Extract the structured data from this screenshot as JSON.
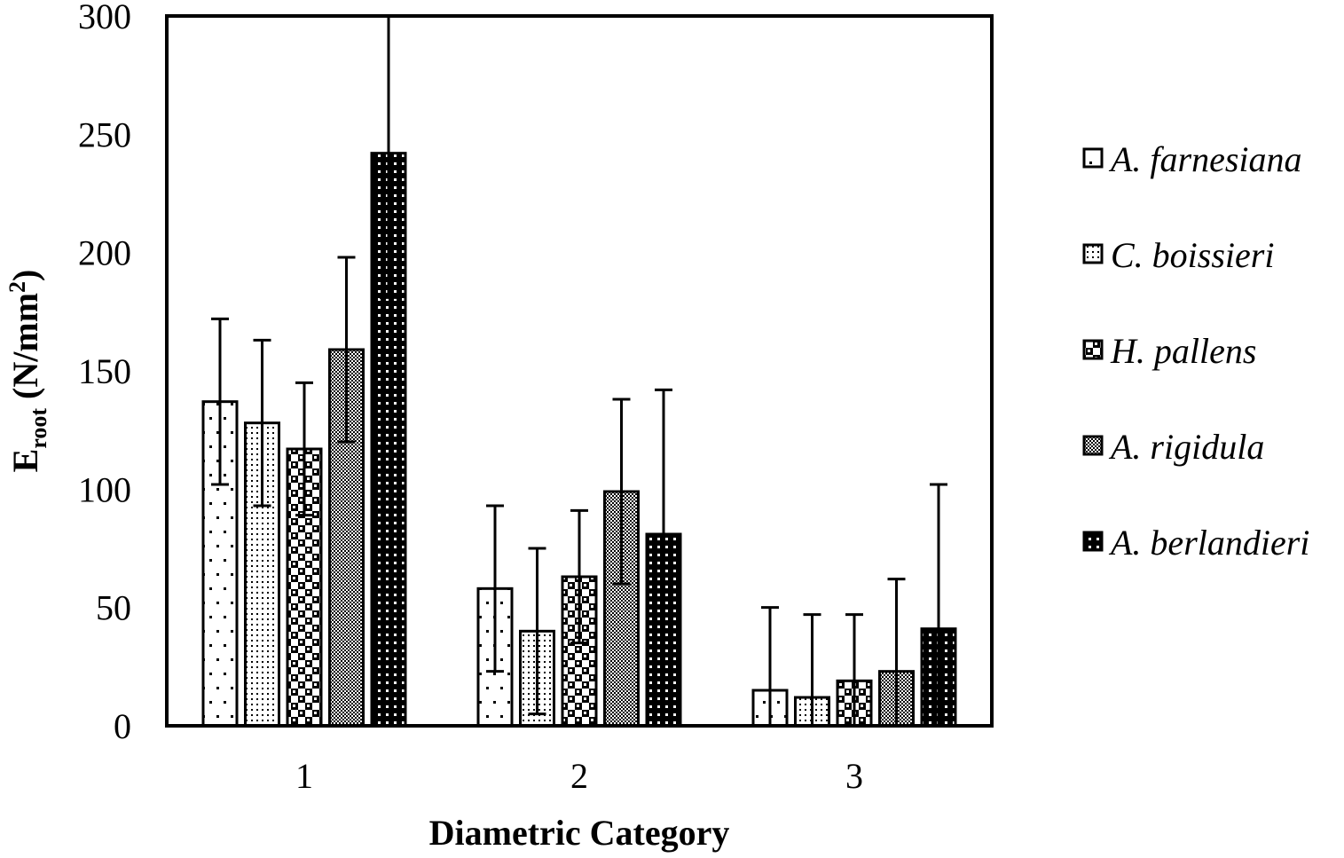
{
  "chart_data": {
    "type": "bar",
    "categories": [
      "1",
      "2",
      "3"
    ],
    "series": [
      {
        "name": "A. farnesiana",
        "pattern": "sparse-dots",
        "values": [
          137,
          58,
          15
        ],
        "errors": [
          35,
          35,
          35
        ]
      },
      {
        "name": "C. boissieri",
        "pattern": "fine-dots",
        "values": [
          128,
          40,
          12
        ],
        "errors": [
          35,
          35,
          35
        ]
      },
      {
        "name": "H. pallens",
        "pattern": "checker",
        "values": [
          117,
          63,
          19
        ],
        "errors": [
          28,
          28,
          28
        ]
      },
      {
        "name": "A. rigidula",
        "pattern": "dense-grid",
        "values": [
          159,
          99,
          23
        ],
        "errors": [
          39,
          39,
          39
        ]
      },
      {
        "name": "A. berlandieri",
        "pattern": "black-dots",
        "values": [
          242,
          81,
          41
        ],
        "errors": [
          61,
          61,
          61
        ]
      }
    ],
    "xlabel": "Diametric Category",
    "ylabel": {
      "main": "E",
      "subscript": "root",
      "unit": " (N/mm",
      "superscript": "2",
      "close": ")"
    },
    "ylim": [
      0,
      300
    ],
    "yticks": [
      0,
      50,
      100,
      150,
      200,
      250,
      300
    ],
    "grid": false,
    "legend_position": "right",
    "colors": {
      "ink": "#000000",
      "fill": "#ffffff"
    }
  }
}
